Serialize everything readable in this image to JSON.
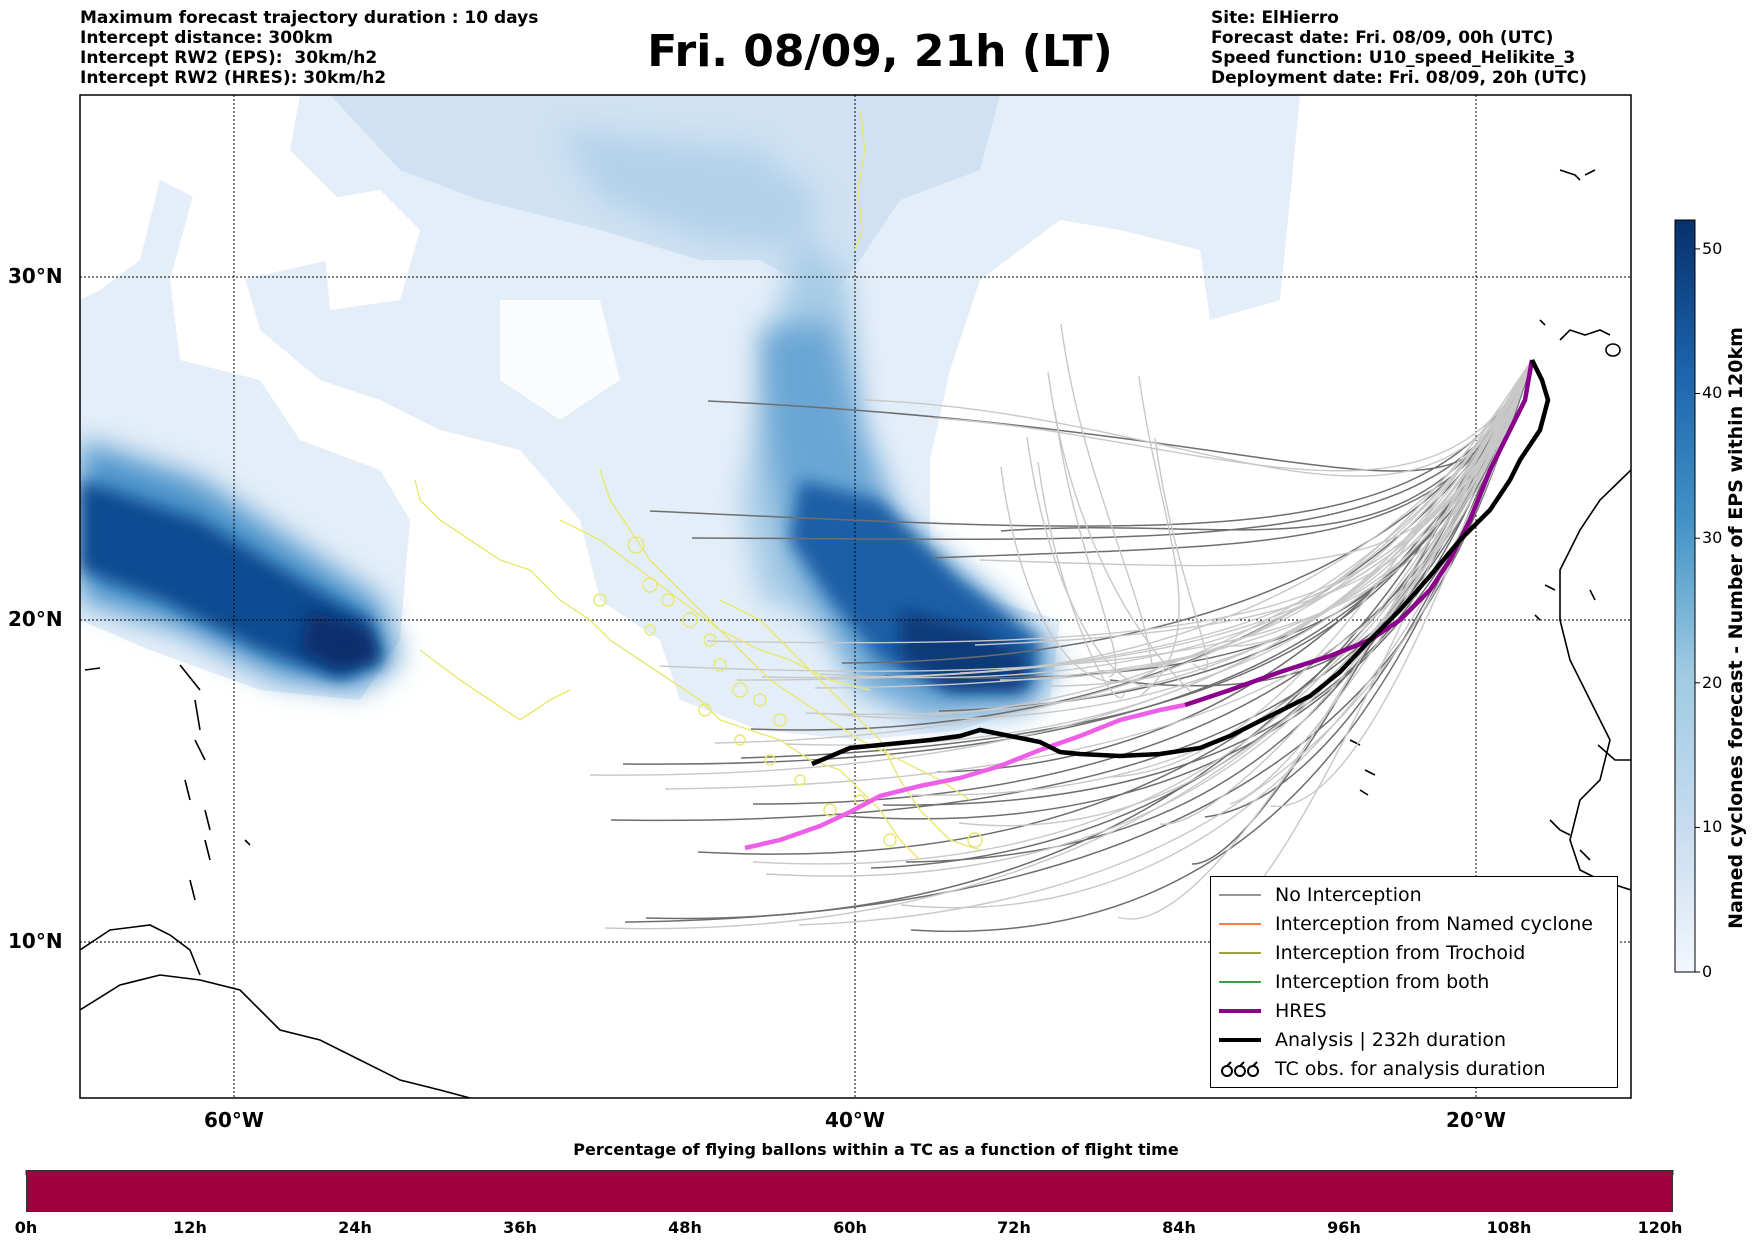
{
  "header_left": [
    "Maximum forecast trajectory duration : 10 days",
    "Intercept distance: 300km",
    "Intercept RW2 (EPS):  30km/h2",
    "Intercept RW2 (HRES): 30km/h2"
  ],
  "title": "Fri. 08/09, 21h (LT)",
  "header_right": [
    "Site: ElHierro",
    "Forecast date: Fri. 08/09, 00h (UTC)",
    "Speed function: U10_speed_Helikite_3",
    "Deployment date: Fri. 08/09, 20h (UTC)"
  ],
  "map": {
    "lon_labels": [
      "60°W",
      "40°W",
      "20°W"
    ],
    "lat_labels": [
      "30°N",
      "20°N",
      "10°N"
    ]
  },
  "colorbar": {
    "label": "Named cyclones forecast - Number of EPS within 120km",
    "ticks": [
      "0",
      "10",
      "20",
      "30",
      "40",
      "50"
    ],
    "min": 0,
    "max": 52
  },
  "legend": {
    "items": [
      {
        "label": "No Interception",
        "color": "#777777"
      },
      {
        "label": "Interception from Named cyclone",
        "color": "#ff5500"
      },
      {
        "label": "Interception from Trochoid",
        "color": "#808000"
      },
      {
        "label": "Interception from both",
        "color": "#008000"
      },
      {
        "label": "HRES",
        "color": "#8b008b"
      },
      {
        "label": "Analysis | 232h duration",
        "color": "#000000"
      },
      {
        "label": "TC obs. for analysis duration",
        "color": "#000000"
      }
    ]
  },
  "bottom": {
    "title": "Percentage of flying ballons within a TC as a function of flight time",
    "ticks": [
      "0h",
      "12h",
      "24h",
      "36h",
      "48h",
      "60h",
      "72h",
      "84h",
      "96h",
      "108h",
      "120h"
    ],
    "bar_color": "#a0003b"
  }
}
